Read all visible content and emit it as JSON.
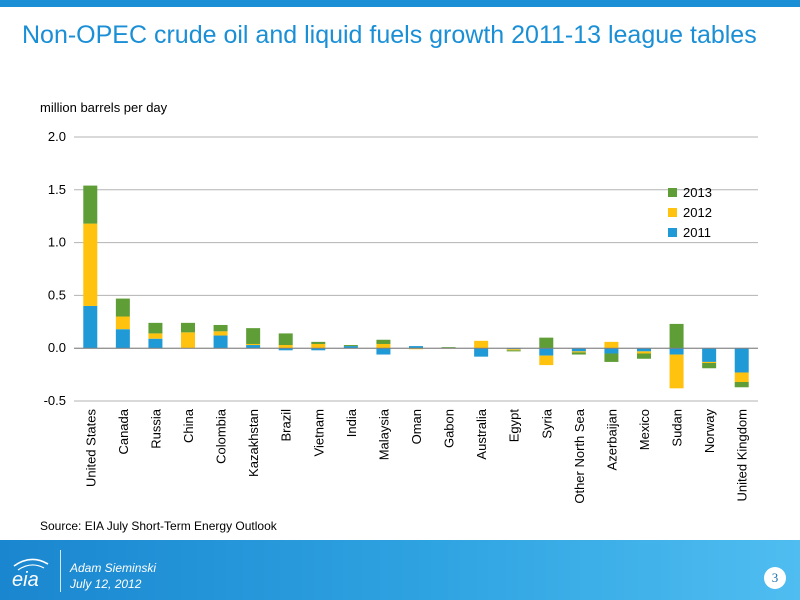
{
  "slide": {
    "title": "Non-OPEC crude oil and liquid fuels growth 2011-13 league tables",
    "unit_label": "million barrels per day",
    "source": "Source: EIA July Short-Term Energy Outlook",
    "presenter": "Adam Sieminski",
    "date": "July 12, 2012",
    "page_number": "3",
    "logo_text": "eia"
  },
  "colors": {
    "accent": "#1a8fd6",
    "s2011": "#1f9ad6",
    "s2012": "#ffc20e",
    "s2013": "#5f9e37"
  },
  "chart_data": {
    "type": "bar",
    "stacked": true,
    "categories": [
      "United States",
      "Canada",
      "Russia",
      "China",
      "Colombia",
      "Kazakhstan",
      "Brazil",
      "Vietnam",
      "India",
      "Malaysia",
      "Oman",
      "Gabon",
      "Australia",
      "Egypt",
      "Syria",
      "Other North Sea",
      "Azerbaijan",
      "Mexico",
      "Sudan",
      "Norway",
      "United Kingdom"
    ],
    "series": [
      {
        "name": "2011",
        "color": "#1f9ad6",
        "values": [
          0.4,
          0.18,
          0.09,
          0.0,
          0.12,
          0.03,
          -0.02,
          -0.02,
          0.02,
          -0.06,
          0.02,
          0.0,
          -0.08,
          -0.01,
          -0.07,
          -0.03,
          -0.05,
          -0.03,
          -0.06,
          -0.13,
          -0.23
        ]
      },
      {
        "name": "2012",
        "color": "#ffc20e",
        "values": [
          0.78,
          0.12,
          0.05,
          0.15,
          0.04,
          0.01,
          0.03,
          0.04,
          0.0,
          0.04,
          -0.01,
          0.0,
          0.07,
          -0.01,
          -0.09,
          -0.01,
          0.06,
          -0.02,
          -0.32,
          -0.01,
          -0.09
        ]
      },
      {
        "name": "2013",
        "color": "#5f9e37",
        "values": [
          0.36,
          0.17,
          0.1,
          0.09,
          0.06,
          0.15,
          0.11,
          0.02,
          0.01,
          0.04,
          0.0,
          0.01,
          0.0,
          -0.01,
          0.1,
          -0.02,
          -0.08,
          -0.05,
          0.23,
          -0.05,
          -0.05
        ]
      }
    ],
    "legend_order": [
      "2013",
      "2012",
      "2011"
    ],
    "legend_position": "top-right",
    "ylim": [
      -0.5,
      2.0
    ],
    "yticks": [
      "2.0",
      "1.5",
      "1.0",
      "0.5",
      "0.0",
      "-0.5"
    ],
    "ytick_values": [
      2.0,
      1.5,
      1.0,
      0.5,
      0.0,
      -0.5
    ],
    "grid": true
  }
}
